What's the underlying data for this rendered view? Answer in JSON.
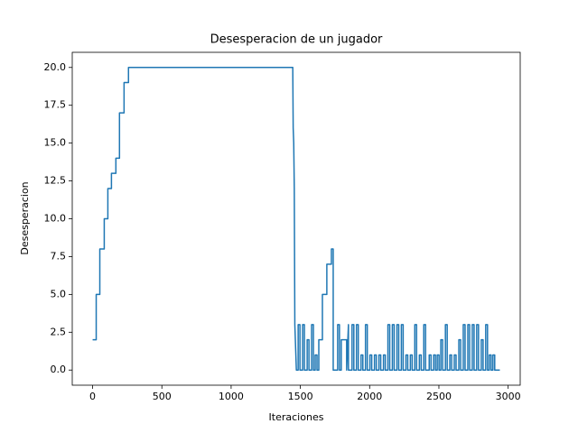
{
  "chart_data": {
    "type": "line",
    "title": "Desesperacion de un jugador",
    "xlabel": "Iteraciones",
    "ylabel": "Desesperacion",
    "x": [
      0,
      26,
      26,
      52,
      52,
      84,
      84,
      110,
      110,
      136,
      136,
      168,
      168,
      194,
      194,
      227,
      227,
      259,
      259,
      1445,
      1448,
      1452,
      1456,
      1460,
      1471,
      1484,
      1484,
      1497,
      1497,
      1516,
      1516,
      1529,
      1529,
      1549,
      1549,
      1562,
      1562,
      1581,
      1581,
      1594,
      1594,
      1607,
      1607,
      1620,
      1620,
      1633,
      1633,
      1659,
      1659,
      1691,
      1691,
      1724,
      1724,
      1737,
      1737,
      1769,
      1769,
      1782,
      1782,
      1795,
      1795,
      1834,
      1834,
      1847,
      1847,
      1873,
      1873,
      1886,
      1886,
      1905,
      1905,
      1918,
      1918,
      1938,
      1938,
      1951,
      1951,
      1970,
      1970,
      1983,
      1983,
      2002,
      2002,
      2015,
      2015,
      2035,
      2035,
      2048,
      2048,
      2067,
      2067,
      2080,
      2080,
      2100,
      2100,
      2113,
      2113,
      2132,
      2132,
      2145,
      2145,
      2164,
      2164,
      2177,
      2177,
      2197,
      2197,
      2210,
      2210,
      2229,
      2229,
      2242,
      2242,
      2262,
      2262,
      2275,
      2275,
      2294,
      2294,
      2307,
      2307,
      2326,
      2326,
      2339,
      2339,
      2359,
      2359,
      2372,
      2372,
      2391,
      2391,
      2404,
      2404,
      2430,
      2430,
      2443,
      2443,
      2462,
      2462,
      2475,
      2475,
      2488,
      2488,
      2501,
      2501,
      2514,
      2514,
      2527,
      2527,
      2547,
      2547,
      2560,
      2560,
      2579,
      2579,
      2592,
      2592,
      2611,
      2611,
      2624,
      2624,
      2644,
      2644,
      2657,
      2657,
      2676,
      2676,
      2689,
      2689,
      2709,
      2709,
      2722,
      2722,
      2741,
      2741,
      2754,
      2754,
      2773,
      2773,
      2786,
      2786,
      2806,
      2806,
      2819,
      2819,
      2838,
      2838,
      2851,
      2851,
      2864,
      2864,
      2877,
      2877,
      2890,
      2890,
      2903,
      2903,
      2940
    ],
    "values": [
      2,
      2,
      5,
      5,
      8,
      8,
      10,
      10,
      12,
      12,
      13,
      13,
      14,
      14,
      17,
      17,
      19,
      19,
      20,
      20,
      16,
      15,
      12,
      3,
      0,
      0,
      3,
      3,
      0,
      0,
      3,
      3,
      0,
      0,
      2,
      2,
      0,
      0,
      3,
      3,
      0,
      0,
      1,
      1,
      0,
      0,
      2,
      2,
      5,
      5,
      7,
      7,
      8,
      8,
      0,
      0,
      3,
      3,
      0,
      0,
      2,
      2,
      0,
      3,
      0,
      0,
      3,
      3,
      0,
      0,
      3,
      3,
      0,
      0,
      1,
      1,
      0,
      0,
      3,
      3,
      0,
      0,
      1,
      1,
      0,
      0,
      1,
      1,
      0,
      0,
      1,
      1,
      0,
      0,
      1,
      1,
      0,
      0,
      3,
      3,
      0,
      0,
      3,
      3,
      0,
      0,
      3,
      3,
      0,
      0,
      3,
      3,
      0,
      0,
      1,
      1,
      0,
      0,
      1,
      1,
      0,
      0,
      3,
      3,
      0,
      0,
      1,
      1,
      0,
      0,
      3,
      3,
      0,
      0,
      1,
      1,
      0,
      0,
      1,
      1,
      0,
      0,
      1,
      1,
      0,
      0,
      2,
      2,
      0,
      0,
      3,
      3,
      0,
      0,
      1,
      1,
      0,
      0,
      1,
      1,
      0,
      0,
      2,
      2,
      0,
      0,
      3,
      3,
      0,
      0,
      3,
      3,
      0,
      0,
      3,
      3,
      0,
      0,
      3,
      3,
      0,
      0,
      2,
      2,
      0,
      0,
      3,
      3,
      0,
      0,
      1,
      1,
      0,
      0,
      1,
      1,
      0,
      0
    ],
    "color": "#1f77b4",
    "xlim": [
      -147,
      3087
    ],
    "xticks": [
      0,
      500,
      1000,
      1500,
      2000,
      2500,
      3000
    ],
    "ylim": [
      -1,
      21
    ],
    "yticks": [
      {
        "value": 0,
        "label": "0.0"
      },
      2.5,
      {
        "value": 5,
        "label": "5.0"
      },
      7.5,
      {
        "value": 10,
        "label": "10.0"
      },
      12.5,
      {
        "value": 15,
        "label": "15.0"
      },
      17.5,
      {
        "value": 20,
        "label": "20.0"
      }
    ]
  }
}
